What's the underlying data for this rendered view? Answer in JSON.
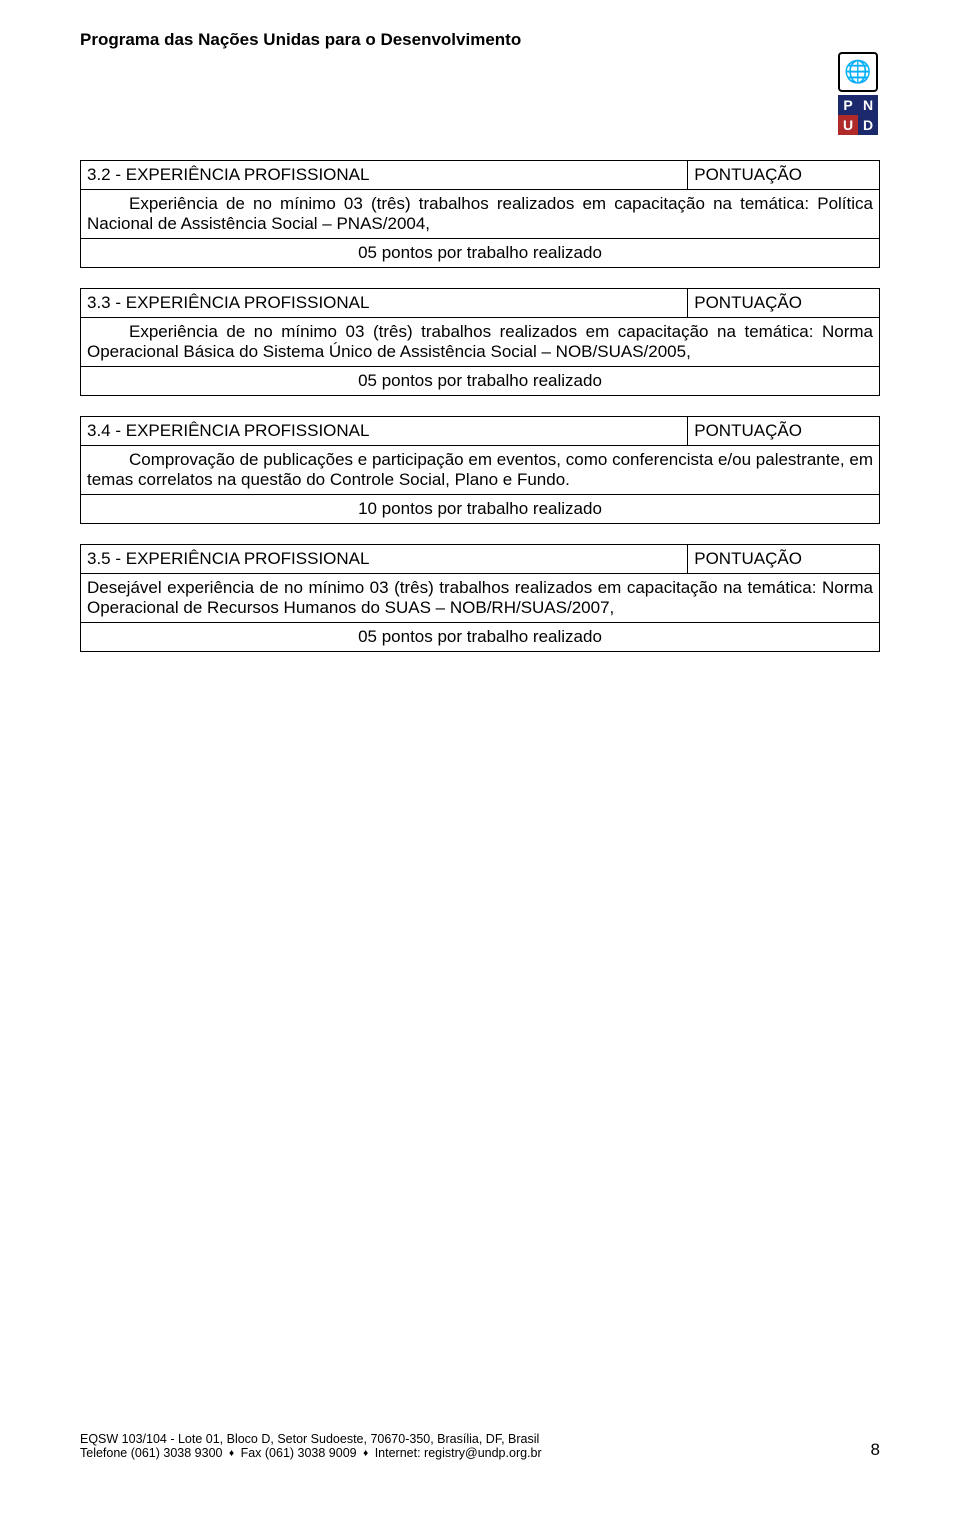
{
  "header": {
    "title": "Programa das Nações Unidas para o Desenvolvimento"
  },
  "logo": {
    "un_emblem_glyph": "🌐",
    "pnud_letters": [
      "P",
      "N",
      "U",
      "D"
    ],
    "pnud_cell_colors": [
      "#1a2a6c",
      "#1a2a6c",
      "#b02a2a",
      "#1a2a6c"
    ]
  },
  "sections": [
    {
      "title_left": "3.2 - EXPERIÊNCIA PROFISSIONAL",
      "title_right": "PONTUAÇÃO",
      "description": "Experiência de no mínimo 03 (três) trabalhos realizados em capacitação na temática: Política Nacional de Assistência Social – PNAS/2004,",
      "indent": true,
      "points": "05 pontos por trabalho realizado"
    },
    {
      "title_left": "3.3 - EXPERIÊNCIA PROFISSIONAL",
      "title_right": "PONTUAÇÃO",
      "description": "Experiência de no mínimo 03 (três) trabalhos realizados em capacitação na temática: Norma Operacional Básica do Sistema Único de Assistência Social – NOB/SUAS/2005,",
      "indent": true,
      "points": "05 pontos por trabalho realizado"
    },
    {
      "title_left": "3.4 - EXPERIÊNCIA PROFISSIONAL",
      "title_right": "PONTUAÇÃO",
      "description": "Comprovação de publicações e participação em eventos, como conferencista e/ou palestrante, em temas correlatos na questão do Controle Social, Plano e Fundo.",
      "indent": true,
      "points": "10 pontos por trabalho realizado"
    },
    {
      "title_left": "3.5 - EXPERIÊNCIA PROFISSIONAL",
      "title_right": "PONTUAÇÃO",
      "description": "Desejável experiência de no mínimo 03 (três) trabalhos realizados em capacitação na temática: Norma Operacional de Recursos Humanos do SUAS – NOB/RH/SUAS/2007,",
      "indent": false,
      "points": "05 pontos por trabalho realizado"
    }
  ],
  "footer": {
    "line1_a": "EQSW 103/104 - Lote 01, Bloco D, Setor Sudoeste, 70670-350, Brasília, DF, Brasil",
    "line2_a": "Telefone (061) 3038 9300",
    "line2_b": "Fax (061) 3038 9009",
    "line2_c": "Internet: registry@undp.org.br",
    "page_number": "8"
  }
}
